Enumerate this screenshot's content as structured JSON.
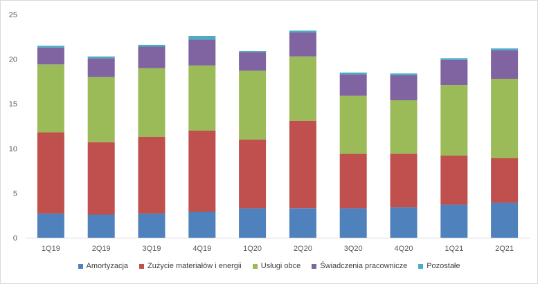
{
  "chart_data": {
    "type": "bar",
    "stacked": true,
    "categories": [
      "1Q19",
      "2Q19",
      "3Q19",
      "4Q19",
      "1Q20",
      "2Q20",
      "3Q20",
      "4Q20",
      "1Q21",
      "2Q21"
    ],
    "series": [
      {
        "name": "Amortyzacja",
        "color": "#4f81bd",
        "values": [
          2.7,
          2.6,
          2.7,
          2.9,
          3.3,
          3.3,
          3.3,
          3.4,
          3.7,
          3.9
        ]
      },
      {
        "name": "Zużycie materiałów i energii",
        "color": "#c0504d",
        "values": [
          9.1,
          8.1,
          8.6,
          9.1,
          7.7,
          9.8,
          6.1,
          6.0,
          5.5,
          5.0
        ]
      },
      {
        "name": "Usługi obce",
        "color": "#9bbb59",
        "values": [
          7.6,
          7.3,
          7.7,
          7.3,
          7.7,
          7.2,
          6.5,
          6.0,
          7.9,
          8.9
        ]
      },
      {
        "name": "Świadczenia pracownicze",
        "color": "#8064a2",
        "values": [
          1.9,
          2.1,
          2.4,
          2.9,
          2.1,
          2.7,
          2.4,
          2.8,
          2.8,
          3.2
        ]
      },
      {
        "name": "Pozostałe",
        "color": "#4bacc6",
        "values": [
          0.2,
          0.2,
          0.2,
          0.4,
          0.1,
          0.2,
          0.2,
          0.2,
          0.2,
          0.2
        ]
      }
    ],
    "yticks": [
      "0",
      "5",
      "10",
      "15",
      "20",
      "25"
    ],
    "ylim": [
      0,
      25
    ],
    "grid": false,
    "legend_position": "bottom",
    "title": "",
    "xlabel": "",
    "ylabel": ""
  }
}
